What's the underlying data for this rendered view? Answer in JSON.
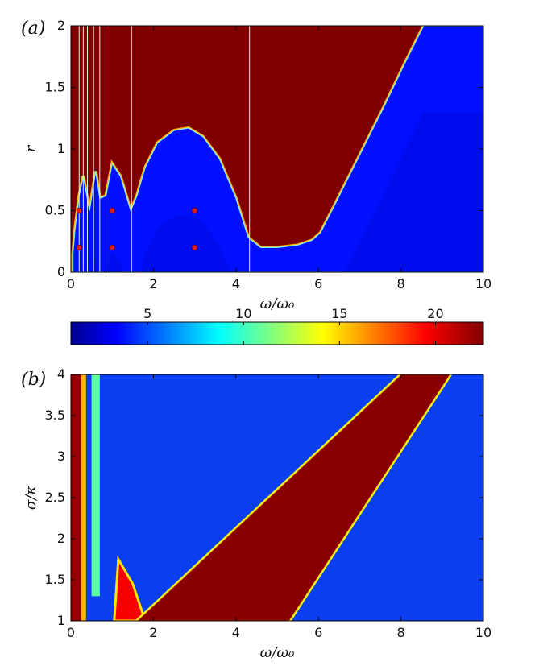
{
  "chart_data": [
    {
      "type": "heatmap",
      "panel_label": "(a)",
      "xlabel": "ω/ω₀",
      "ylabel": "r",
      "xlim": [
        0,
        10
      ],
      "ylim": [
        0,
        2
      ],
      "xticks": [
        "0",
        "2",
        "4",
        "6",
        "8",
        "10"
      ],
      "yticks": [
        "0",
        "0.5",
        "1",
        "1.5",
        "2"
      ],
      "boundary": {
        "x": [
          0.05,
          0.1,
          0.2,
          0.3,
          0.45,
          0.6,
          0.7,
          0.85,
          1.0,
          1.2,
          1.45,
          1.6,
          1.8,
          2.1,
          2.5,
          2.85,
          3.2,
          3.6,
          4.0,
          4.3,
          4.6,
          5.0,
          5.5,
          5.85,
          6.05,
          6.4,
          7.0,
          7.6,
          8.1,
          8.55
        ],
        "y": [
          0.15,
          0.35,
          0.62,
          0.78,
          0.5,
          0.82,
          0.6,
          0.62,
          0.88,
          0.78,
          0.5,
          0.62,
          0.85,
          1.05,
          1.15,
          1.17,
          1.1,
          0.92,
          0.6,
          0.28,
          0.2,
          0.2,
          0.22,
          0.26,
          0.32,
          0.55,
          0.95,
          1.35,
          1.7,
          2.0
        ]
      },
      "vertical_lines_x": [
        0.2,
        0.3,
        0.4,
        0.55,
        0.7,
        0.85,
        1.47,
        4.33
      ],
      "markers": [
        {
          "x": 0.2,
          "y": 0.2
        },
        {
          "x": 0.2,
          "y": 0.5
        },
        {
          "x": 1.0,
          "y": 0.2
        },
        {
          "x": 1.0,
          "y": 0.5
        },
        {
          "x": 3.0,
          "y": 0.2
        },
        {
          "x": 3.0,
          "y": 0.5
        }
      ],
      "inside_level": 4,
      "outside_level": 22
    },
    {
      "type": "heatmap",
      "panel_label": "(b)",
      "xlabel": "ω/ω₀",
      "ylabel": "σ/κ",
      "xlim": [
        0,
        10
      ],
      "ylim": [
        1,
        4
      ],
      "xticks": [
        "0",
        "2",
        "4",
        "6",
        "8",
        "10"
      ],
      "yticks": [
        "1",
        "1.5",
        "2",
        "2.5",
        "3",
        "3.5",
        "4"
      ],
      "left_band": {
        "x": [
          0,
          0.25
        ],
        "level": 22
      },
      "cyan_band": {
        "x": [
          0.5,
          0.7
        ],
        "level": 11
      },
      "red_wedge": {
        "lower_boundary": {
          "x": [
            1.6,
            8.0
          ],
          "y": [
            1.0,
            4.0
          ]
        },
        "upper_boundary": {
          "x": [
            5.3,
            9.2
          ],
          "y": [
            1.0,
            4.0
          ]
        }
      },
      "small_wedges": [
        {
          "x": [
            1.05,
            1.15,
            1.5,
            1.8
          ],
          "y": [
            1.0,
            1.75,
            1.45,
            1.0
          ]
        }
      ],
      "background_level": 3
    }
  ],
  "colorbar": {
    "ticks": [
      "5",
      "10",
      "15",
      "20"
    ],
    "tick_values": [
      5,
      10,
      15,
      20
    ],
    "range": [
      1,
      22.5
    ],
    "colormap": "jet"
  }
}
